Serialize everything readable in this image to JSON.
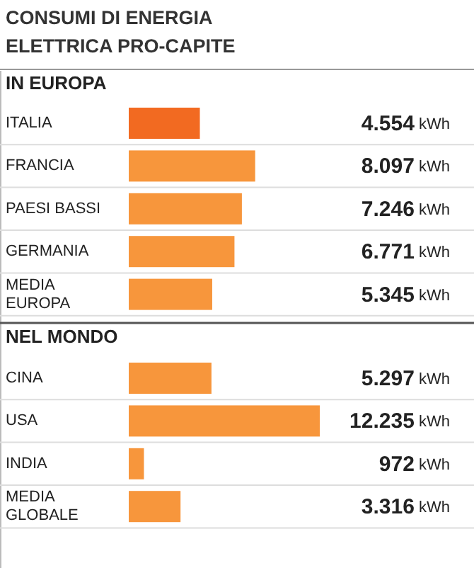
{
  "chart_data": [
    {
      "type": "bar",
      "orientation": "horizontal",
      "title": "CONSUMI DI ENERGIA ELETTRICA PRO-CAPITE",
      "subtitle": "IN EUROPA",
      "categories": [
        "ITALIA",
        "FRANCIA",
        "PAESI BASSI",
        "GERMANIA",
        "MEDIA EUROPA"
      ],
      "values": [
        4554,
        8097,
        7246,
        6771,
        5345
      ],
      "colors": [
        "#f26a21",
        "#f7963c",
        "#f7963c",
        "#f7963c",
        "#f7963c"
      ],
      "value_labels": [
        "4.554 kWh",
        "8.097 kWh",
        "7.246 kWh",
        "6.771 kWh",
        "5.345 kWh"
      ]
    },
    {
      "type": "bar",
      "orientation": "horizontal",
      "title": "NEL MONDO",
      "categories": [
        "CINA",
        "USA",
        "INDIA",
        "MEDIA GLOBALE"
      ],
      "values": [
        5297,
        12235,
        972,
        3316
      ],
      "colors": [
        "#f7963c",
        "#f7963c",
        "#f7963c",
        "#f7963c"
      ],
      "value_labels": [
        "5.297 kWh",
        "12.235 kWh",
        "972 kWh",
        "3.316 kWh"
      ]
    }
  ]
}
